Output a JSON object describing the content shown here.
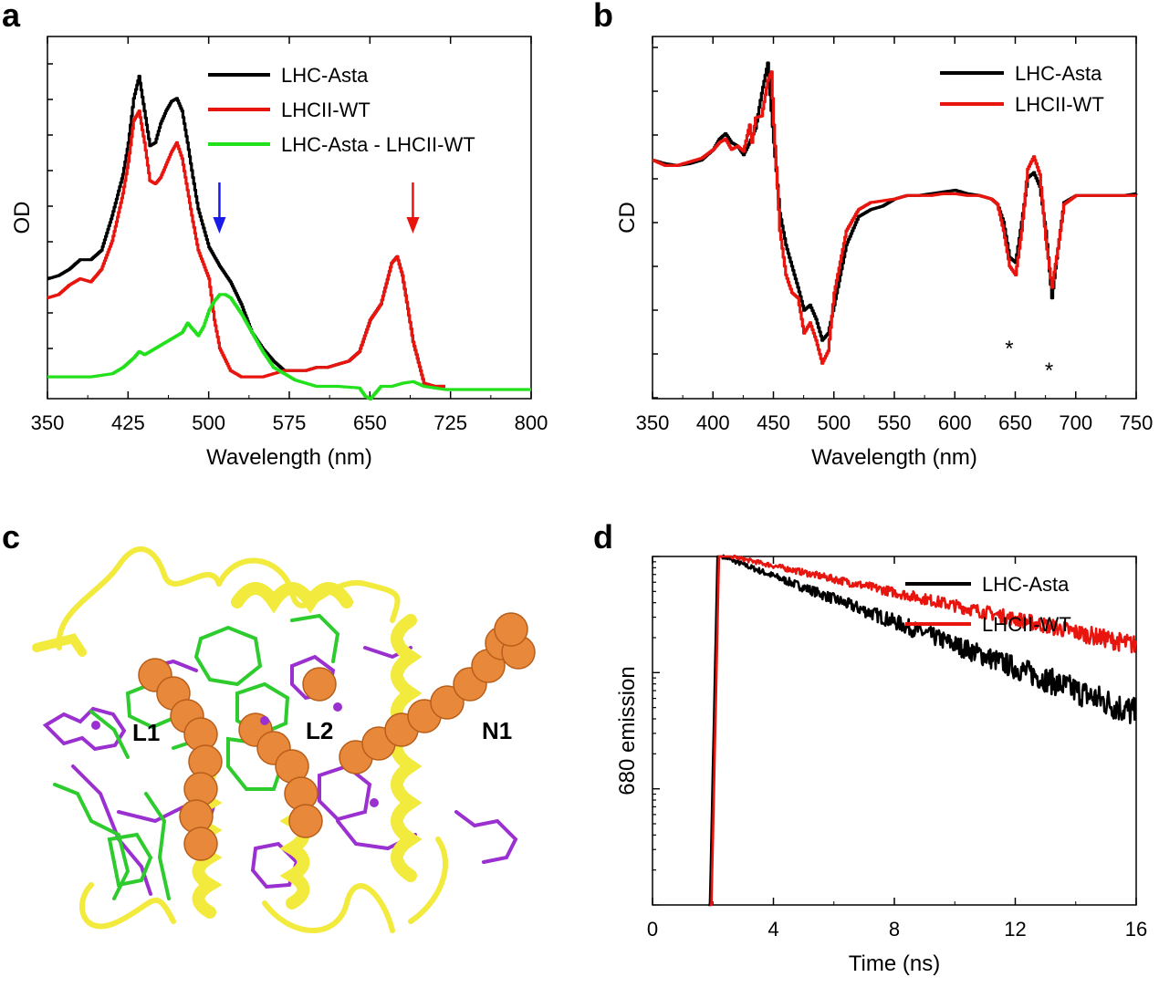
{
  "panel_labels": [
    "a",
    "b",
    "c",
    "d"
  ],
  "panel_c": {
    "labels": [
      "L1",
      "L2",
      "N1"
    ],
    "colors": {
      "helix": "#f2ea3c",
      "helix_dark": "#c8b800",
      "spheres": "#e8883a",
      "green": "#2ecb2e",
      "purple": "#9b30d0"
    }
  },
  "chart_data": [
    {
      "id": "a",
      "type": "line",
      "xlabel": "Wavelength (nm)",
      "ylabel": "OD",
      "xlim": [
        350,
        800
      ],
      "ylim": [
        0,
        1
      ],
      "xticks": [
        350,
        425,
        500,
        575,
        650,
        725,
        800
      ],
      "yticks_labeled": false,
      "legend_position": "top-right",
      "series": [
        {
          "name": "LHC-Asta",
          "color": "#000000",
          "x": [
            350,
            360,
            370,
            380,
            390,
            400,
            410,
            420,
            425,
            430,
            435,
            440,
            445,
            450,
            455,
            460,
            465,
            470,
            475,
            480,
            485,
            490,
            500,
            510,
            520,
            530,
            540,
            550,
            560,
            570,
            580,
            590,
            600,
            610,
            620,
            630,
            640,
            650,
            660,
            670,
            675,
            680,
            690,
            700,
            710,
            720
          ],
          "y": [
            0.35,
            0.36,
            0.38,
            0.41,
            0.41,
            0.44,
            0.55,
            0.68,
            0.78,
            0.92,
            0.99,
            0.88,
            0.77,
            0.78,
            0.84,
            0.88,
            0.91,
            0.92,
            0.88,
            0.78,
            0.67,
            0.57,
            0.45,
            0.39,
            0.34,
            0.27,
            0.18,
            0.13,
            0.09,
            0.06,
            0.06,
            0.06,
            0.07,
            0.07,
            0.08,
            0.09,
            0.12,
            0.22,
            0.27,
            0.4,
            0.42,
            0.36,
            0.15,
            0.02,
            0.01,
            0.01
          ]
        },
        {
          "name": "LHCII-WT",
          "color": "#e8150f",
          "x": [
            350,
            360,
            370,
            380,
            390,
            400,
            410,
            420,
            425,
            430,
            435,
            440,
            445,
            450,
            455,
            460,
            465,
            470,
            475,
            480,
            485,
            490,
            500,
            505,
            510,
            520,
            530,
            540,
            550,
            560,
            570,
            580,
            590,
            600,
            610,
            620,
            630,
            640,
            650,
            660,
            670,
            675,
            680,
            690,
            700,
            710,
            720
          ],
          "y": [
            0.29,
            0.3,
            0.33,
            0.35,
            0.34,
            0.38,
            0.47,
            0.62,
            0.72,
            0.85,
            0.88,
            0.78,
            0.66,
            0.65,
            0.67,
            0.71,
            0.75,
            0.78,
            0.73,
            0.63,
            0.53,
            0.44,
            0.35,
            0.22,
            0.13,
            0.06,
            0.04,
            0.04,
            0.04,
            0.05,
            0.06,
            0.06,
            0.06,
            0.07,
            0.07,
            0.08,
            0.09,
            0.12,
            0.22,
            0.27,
            0.4,
            0.42,
            0.36,
            0.15,
            0.02,
            0.01,
            0.01
          ]
        },
        {
          "name": "LHC-Asta - LHCII-WT",
          "color": "#22e01c",
          "x": [
            350,
            370,
            390,
            410,
            420,
            430,
            435,
            440,
            450,
            460,
            470,
            475,
            480,
            485,
            490,
            495,
            500,
            505,
            510,
            515,
            520,
            530,
            540,
            550,
            560,
            570,
            580,
            590,
            600,
            620,
            640,
            645,
            650,
            655,
            660,
            670,
            680,
            690,
            700,
            720,
            740,
            760,
            780,
            800
          ],
          "y": [
            0.04,
            0.04,
            0.04,
            0.05,
            0.07,
            0.1,
            0.12,
            0.11,
            0.13,
            0.15,
            0.17,
            0.18,
            0.21,
            0.19,
            0.17,
            0.2,
            0.25,
            0.28,
            0.3,
            0.3,
            0.29,
            0.24,
            0.18,
            0.12,
            0.07,
            0.05,
            0.03,
            0.02,
            0.01,
            0.01,
            0.005,
            -0.02,
            -0.03,
            -0.01,
            0.01,
            0.01,
            0.02,
            0.025,
            0.01,
            0.0,
            0.0,
            0.0,
            0.0,
            0.0
          ]
        }
      ],
      "arrows": [
        {
          "x": 510,
          "color": "#1a1ae8"
        },
        {
          "x": 690,
          "color": "#e8150f"
        }
      ]
    },
    {
      "id": "b",
      "type": "line",
      "xlabel": "Wavelength (nm)",
      "ylabel": "CD",
      "xlim": [
        350,
        750
      ],
      "ylim": [
        -1.15,
        0.9
      ],
      "xticks": [
        350,
        400,
        450,
        500,
        550,
        600,
        650,
        700,
        750
      ],
      "yticks_labeled": false,
      "legend_position": "top-right",
      "series": [
        {
          "name": "LHC-Asta",
          "color": "#000000",
          "x": [
            350,
            360,
            370,
            380,
            390,
            400,
            405,
            410,
            415,
            420,
            425,
            430,
            435,
            440,
            445,
            450,
            455,
            460,
            465,
            470,
            475,
            480,
            485,
            490,
            495,
            500,
            510,
            520,
            530,
            540,
            550,
            560,
            570,
            580,
            590,
            600,
            610,
            620,
            630,
            635,
            640,
            645,
            650,
            655,
            660,
            665,
            670,
            675,
            680,
            685,
            690,
            700,
            710,
            720,
            730,
            740,
            750
          ],
          "y": [
            0.2,
            0.18,
            0.17,
            0.18,
            0.2,
            0.26,
            0.32,
            0.35,
            0.3,
            0.28,
            0.23,
            0.3,
            0.38,
            0.58,
            0.75,
            0.3,
            -0.1,
            -0.28,
            -0.4,
            -0.52,
            -0.65,
            -0.62,
            -0.7,
            -0.82,
            -0.78,
            -0.62,
            -0.28,
            -0.12,
            -0.08,
            -0.06,
            -0.02,
            0.0,
            0.0,
            0.01,
            0.02,
            0.03,
            0.01,
            0.0,
            -0.02,
            -0.05,
            -0.15,
            -0.35,
            -0.38,
            -0.15,
            0.1,
            0.13,
            0.05,
            -0.2,
            -0.58,
            -0.3,
            -0.04,
            0.0,
            0.0,
            0.0,
            0.0,
            0.0,
            0.01
          ]
        },
        {
          "name": "LHCII-WT",
          "color": "#e8150f",
          "x": [
            350,
            360,
            370,
            380,
            390,
            400,
            405,
            410,
            415,
            420,
            425,
            430,
            432,
            435,
            440,
            445,
            448,
            450,
            455,
            460,
            465,
            470,
            475,
            480,
            485,
            490,
            495,
            500,
            510,
            520,
            530,
            540,
            550,
            560,
            570,
            580,
            590,
            600,
            610,
            620,
            630,
            635,
            640,
            645,
            650,
            655,
            660,
            665,
            670,
            675,
            680,
            685,
            690,
            700,
            710,
            720,
            730,
            740,
            750
          ],
          "y": [
            0.2,
            0.17,
            0.17,
            0.19,
            0.21,
            0.26,
            0.3,
            0.32,
            0.26,
            0.28,
            0.25,
            0.4,
            0.3,
            0.44,
            0.45,
            0.65,
            0.7,
            0.4,
            -0.2,
            -0.45,
            -0.55,
            -0.58,
            -0.78,
            -0.72,
            -0.82,
            -0.95,
            -0.88,
            -0.55,
            -0.2,
            -0.08,
            -0.04,
            -0.03,
            -0.02,
            0.0,
            0.0,
            0.0,
            0.01,
            0.01,
            0.0,
            0.0,
            -0.02,
            -0.05,
            -0.2,
            -0.4,
            -0.45,
            -0.2,
            0.15,
            0.22,
            0.12,
            -0.25,
            -0.52,
            -0.3,
            -0.05,
            0.0,
            0.0,
            0.0,
            0.0,
            0.0,
            0.0
          ]
        }
      ],
      "annotations": [
        {
          "text": "*",
          "x": 645
        },
        {
          "text": "*",
          "x": 678
        }
      ]
    },
    {
      "id": "d",
      "type": "line",
      "xlabel": "Time (ns)",
      "ylabel": "680 emission",
      "xlim": [
        0,
        16
      ],
      "yscale": "log",
      "xticks": [
        0,
        4,
        8,
        12,
        16
      ],
      "yticks_labeled": false,
      "legend_position": "top-right",
      "series": [
        {
          "name": "LHC-Asta",
          "color": "#000000",
          "decay": {
            "t0": 1.9,
            "rise_end": 2.15,
            "peak_end": 2.3,
            "tau": 4.4,
            "noise": true
          }
        },
        {
          "name": "LHCII-WT",
          "color": "#e8150f",
          "decay": {
            "t0": 1.95,
            "rise_end": 2.2,
            "peak_end": 2.6,
            "tau": 7.6,
            "noise": true
          }
        }
      ]
    }
  ]
}
